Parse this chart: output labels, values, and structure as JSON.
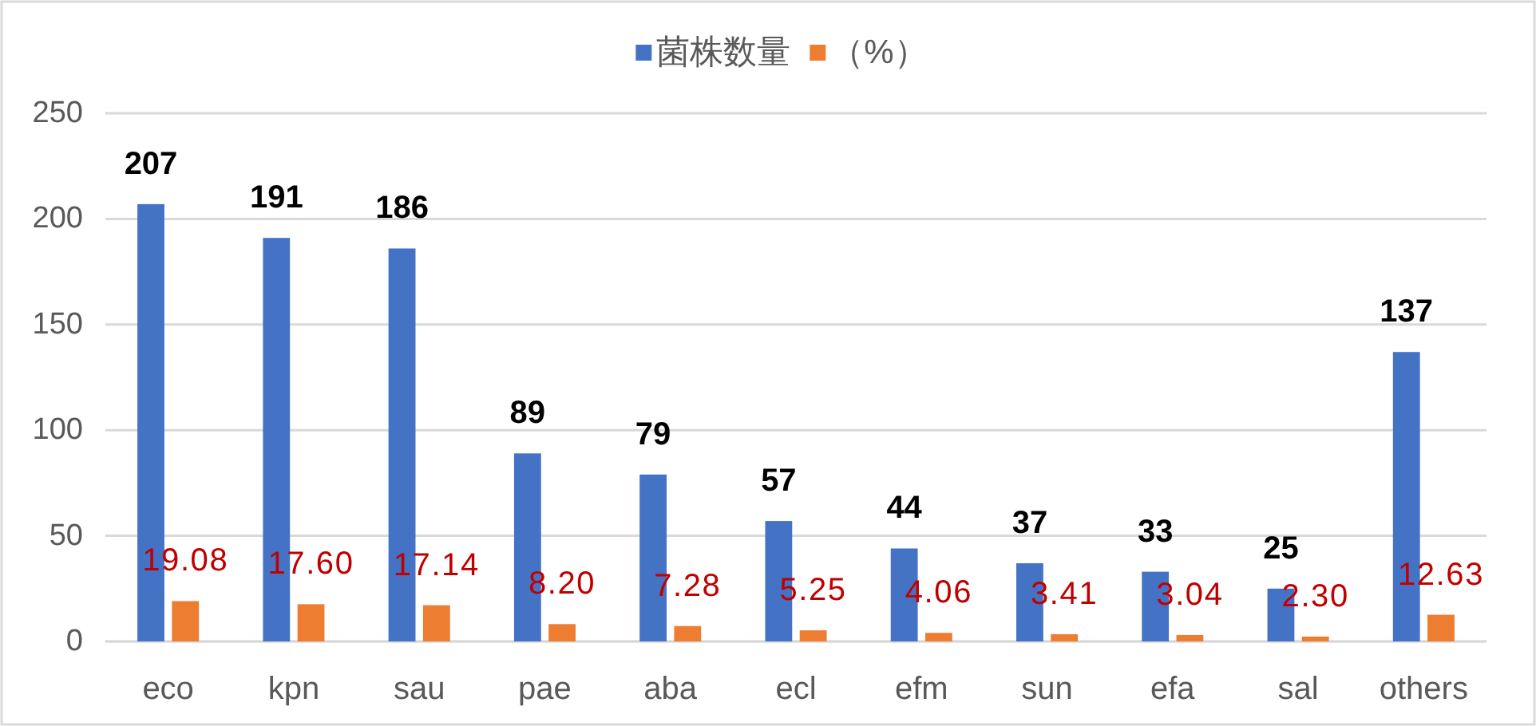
{
  "chart_data": {
    "type": "bar",
    "categories": [
      "eco",
      "kpn",
      "sau",
      "pae",
      "aba",
      "ecl",
      "efm",
      "sun",
      "efa",
      "sal",
      "others"
    ],
    "series": [
      {
        "name": "菌株数量",
        "color": "#4472c4",
        "values": [
          207,
          191,
          186,
          89,
          79,
          57,
          44,
          37,
          33,
          25,
          137
        ],
        "value_labels": [
          "207",
          "191",
          "186",
          "89",
          "79",
          "57",
          "44",
          "37",
          "33",
          "25",
          "137"
        ]
      },
      {
        "name": "（%）",
        "color": "#ed7d31",
        "values": [
          19.08,
          17.6,
          17.14,
          8.2,
          7.28,
          5.25,
          4.06,
          3.41,
          3.04,
          2.3,
          12.63
        ],
        "value_labels": [
          "19.08",
          "17.60",
          "17.14",
          "8.20",
          "7.28",
          "5.25",
          "4.06",
          "3.41",
          "3.04",
          "2.30",
          "12.63"
        ]
      }
    ],
    "ylim": [
      0,
      250
    ],
    "yticks": [
      0,
      50,
      100,
      150,
      200,
      250
    ],
    "grid": "y",
    "legend": "top"
  }
}
